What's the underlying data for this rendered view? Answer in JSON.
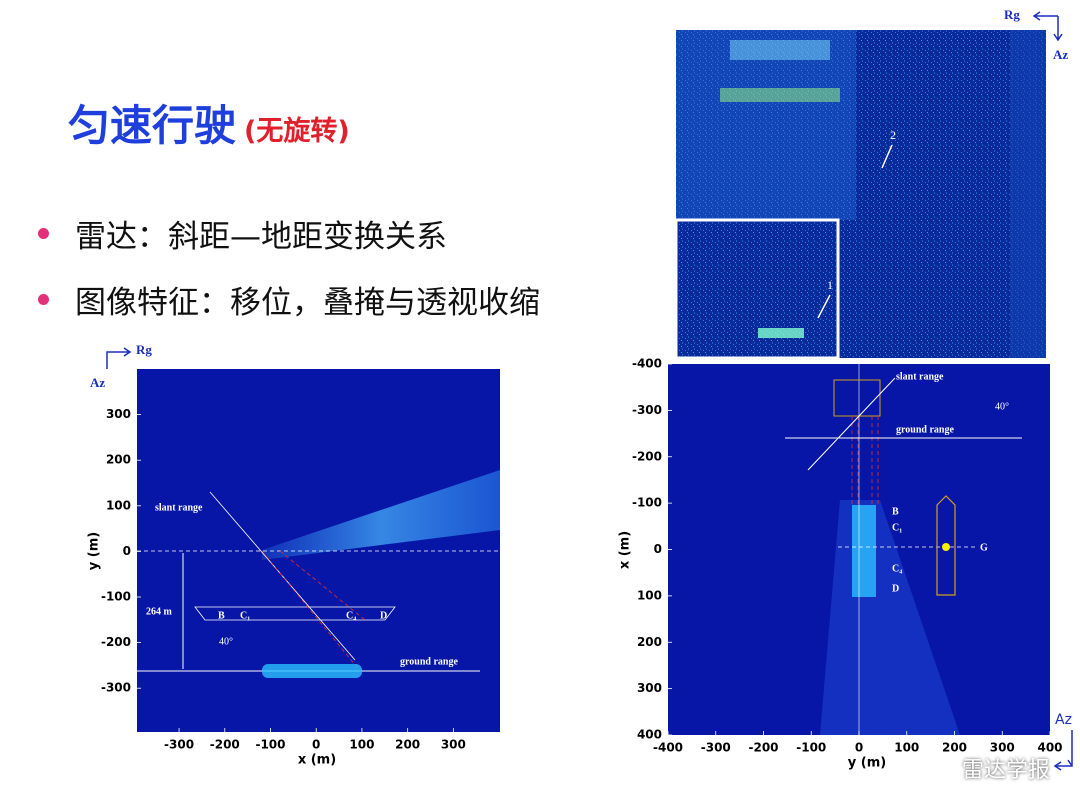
{
  "title": "匀速行驶",
  "subtitle": "(无旋转)",
  "bullets": [
    "雷达：斜距—地距变换关系",
    "图像特征：移位，叠掩与透视收缩"
  ],
  "top_image": {
    "rg": "Rg",
    "az": "Az",
    "marker_1": "1",
    "marker_2": "2"
  },
  "left_plot": {
    "rg": "Rg",
    "az": "Az",
    "xlabel": "x (m)",
    "ylabel": "y (m)",
    "xlim": [
      -392,
      402
    ],
    "ylim": [
      -396,
      400
    ],
    "xticks": [
      -300,
      -200,
      -100,
      0,
      100,
      200,
      300
    ],
    "yticks": [
      300,
      200,
      100,
      0,
      -100,
      -200,
      -300
    ],
    "slant_range": "slant range",
    "ground_range": "ground range",
    "distance": "264 m",
    "angle": "40°",
    "points": [
      "B",
      "C₁",
      "C₄",
      "D"
    ]
  },
  "right_plot": {
    "az": "Az",
    "xlabel": "y (m)",
    "ylabel": "x (m)",
    "xlim": [
      -400,
      400
    ],
    "ylim": [
      -400,
      400
    ],
    "xticks": [
      -400,
      -300,
      -200,
      -100,
      0,
      100,
      200,
      300,
      400
    ],
    "yticks": [
      -400,
      -300,
      -200,
      -100,
      0,
      100,
      200,
      300,
      400
    ],
    "slant_range": "slant range",
    "ground_range": "ground range",
    "angle": "40°",
    "points": [
      "B",
      "C₁",
      "C₄",
      "D"
    ],
    "center": "G"
  },
  "watermark": "雷达学报"
}
